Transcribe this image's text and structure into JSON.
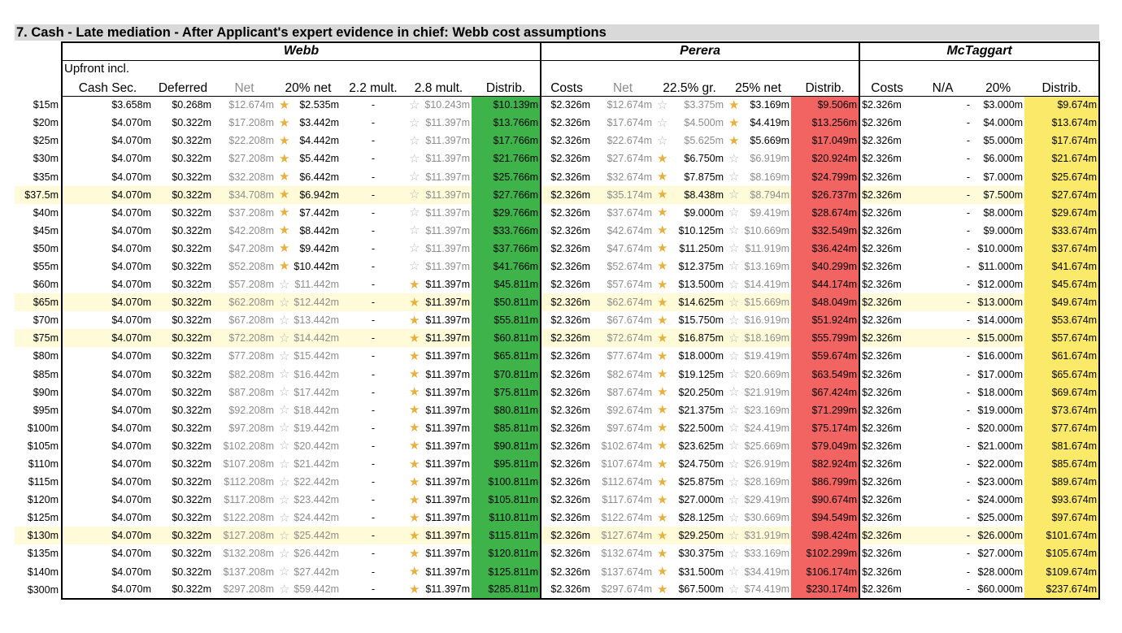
{
  "title": "7.  Cash - Late mediation - After Applicant's expert evidence in chief: Webb cost assumptions",
  "groups": {
    "webb": "Webb",
    "perera": "Perera",
    "mctaggart": "McTaggart"
  },
  "header_top": {
    "upfront": "Upfront incl."
  },
  "headers": {
    "webb": [
      "Cash Sec.",
      "Deferred",
      "Net",
      "20% net",
      "2.2 mult.",
      "2.8 mult.",
      "Distrib."
    ],
    "perera": [
      "Costs",
      "Net",
      "22.5% gr.",
      "25% net",
      "Distrib."
    ],
    "mctaggart": [
      "Costs",
      "N/A",
      "20%",
      "Distrib."
    ]
  },
  "colors": {
    "webb_distrib": "#3db34a",
    "perera_distrib": "#f26461",
    "mctaggart_distrib": "#fbe96a",
    "highlight_row": "#fffbd9",
    "star_filled": "#e8b13d",
    "star_empty": "#b9b9b9"
  },
  "rows": [
    {
      "label": "$15m",
      "hl": false,
      "w": [
        "$3.658m",
        "$0.268m",
        "$12.674m",
        "$2.535m",
        "-",
        "$10.243m",
        "$10.139m"
      ],
      "ws": [
        "f",
        "e"
      ],
      "p": [
        "$2.326m",
        "$12.674m",
        "$3.375m",
        "$3.169m",
        "$9.506m"
      ],
      "ps": [
        "e",
        "f"
      ],
      "m": [
        "$2.326m",
        "-",
        "$3.000m",
        "$9.674m"
      ]
    },
    {
      "label": "$20m",
      "hl": false,
      "w": [
        "$4.070m",
        "$0.322m",
        "$17.208m",
        "$3.442m",
        "-",
        "$11.397m",
        "$13.766m"
      ],
      "ws": [
        "f",
        "e"
      ],
      "p": [
        "$2.326m",
        "$17.674m",
        "$4.500m",
        "$4.419m",
        "$13.256m"
      ],
      "ps": [
        "e",
        "f"
      ],
      "m": [
        "$2.326m",
        "-",
        "$4.000m",
        "$13.674m"
      ]
    },
    {
      "label": "$25m",
      "hl": false,
      "w": [
        "$4.070m",
        "$0.322m",
        "$22.208m",
        "$4.442m",
        "-",
        "$11.397m",
        "$17.766m"
      ],
      "ws": [
        "f",
        "e"
      ],
      "p": [
        "$2.326m",
        "$22.674m",
        "$5.625m",
        "$5.669m",
        "$17.049m"
      ],
      "ps": [
        "e",
        "f"
      ],
      "m": [
        "$2.326m",
        "-",
        "$5.000m",
        "$17.674m"
      ]
    },
    {
      "label": "$30m",
      "hl": false,
      "w": [
        "$4.070m",
        "$0.322m",
        "$27.208m",
        "$5.442m",
        "-",
        "$11.397m",
        "$21.766m"
      ],
      "ws": [
        "f",
        "e"
      ],
      "p": [
        "$2.326m",
        "$27.674m",
        "$6.750m",
        "$6.919m",
        "$20.924m"
      ],
      "ps": [
        "f",
        "e"
      ],
      "m": [
        "$2.326m",
        "-",
        "$6.000m",
        "$21.674m"
      ]
    },
    {
      "label": "$35m",
      "hl": false,
      "w": [
        "$4.070m",
        "$0.322m",
        "$32.208m",
        "$6.442m",
        "-",
        "$11.397m",
        "$25.766m"
      ],
      "ws": [
        "f",
        "e"
      ],
      "p": [
        "$2.326m",
        "$32.674m",
        "$7.875m",
        "$8.169m",
        "$24.799m"
      ],
      "ps": [
        "f",
        "e"
      ],
      "m": [
        "$2.326m",
        "-",
        "$7.000m",
        "$25.674m"
      ]
    },
    {
      "label": "$37.5m",
      "hl": true,
      "w": [
        "$4.070m",
        "$0.322m",
        "$34.708m",
        "$6.942m",
        "-",
        "$11.397m",
        "$27.766m"
      ],
      "ws": [
        "f",
        "e"
      ],
      "p": [
        "$2.326m",
        "$35.174m",
        "$8.438m",
        "$8.794m",
        "$26.737m"
      ],
      "ps": [
        "f",
        "e"
      ],
      "m": [
        "$2.326m",
        "-",
        "$7.500m",
        "$27.674m"
      ]
    },
    {
      "label": "$40m",
      "hl": false,
      "w": [
        "$4.070m",
        "$0.322m",
        "$37.208m",
        "$7.442m",
        "-",
        "$11.397m",
        "$29.766m"
      ],
      "ws": [
        "f",
        "e"
      ],
      "p": [
        "$2.326m",
        "$37.674m",
        "$9.000m",
        "$9.419m",
        "$28.674m"
      ],
      "ps": [
        "f",
        "e"
      ],
      "m": [
        "$2.326m",
        "-",
        "$8.000m",
        "$29.674m"
      ]
    },
    {
      "label": "$45m",
      "hl": false,
      "w": [
        "$4.070m",
        "$0.322m",
        "$42.208m",
        "$8.442m",
        "-",
        "$11.397m",
        "$33.766m"
      ],
      "ws": [
        "f",
        "e"
      ],
      "p": [
        "$2.326m",
        "$42.674m",
        "$10.125m",
        "$10.669m",
        "$32.549m"
      ],
      "ps": [
        "f",
        "e"
      ],
      "m": [
        "$2.326m",
        "-",
        "$9.000m",
        "$33.674m"
      ]
    },
    {
      "label": "$50m",
      "hl": false,
      "w": [
        "$4.070m",
        "$0.322m",
        "$47.208m",
        "$9.442m",
        "-",
        "$11.397m",
        "$37.766m"
      ],
      "ws": [
        "f",
        "e"
      ],
      "p": [
        "$2.326m",
        "$47.674m",
        "$11.250m",
        "$11.919m",
        "$36.424m"
      ],
      "ps": [
        "f",
        "e"
      ],
      "m": [
        "$2.326m",
        "-",
        "$10.000m",
        "$37.674m"
      ]
    },
    {
      "label": "$55m",
      "hl": false,
      "w": [
        "$4.070m",
        "$0.322m",
        "$52.208m",
        "$10.442m",
        "-",
        "$11.397m",
        "$41.766m"
      ],
      "ws": [
        "f",
        "e"
      ],
      "p": [
        "$2.326m",
        "$52.674m",
        "$12.375m",
        "$13.169m",
        "$40.299m"
      ],
      "ps": [
        "f",
        "e"
      ],
      "m": [
        "$2.326m",
        "-",
        "$11.000m",
        "$41.674m"
      ]
    },
    {
      "label": "$60m",
      "hl": false,
      "w": [
        "$4.070m",
        "$0.322m",
        "$57.208m",
        "$11.442m",
        "-",
        "$11.397m",
        "$45.811m"
      ],
      "ws": [
        "e",
        "f"
      ],
      "p": [
        "$2.326m",
        "$57.674m",
        "$13.500m",
        "$14.419m",
        "$44.174m"
      ],
      "ps": [
        "f",
        "e"
      ],
      "m": [
        "$2.326m",
        "-",
        "$12.000m",
        "$45.674m"
      ]
    },
    {
      "label": "$65m",
      "hl": true,
      "w": [
        "$4.070m",
        "$0.322m",
        "$62.208m",
        "$12.442m",
        "-",
        "$11.397m",
        "$50.811m"
      ],
      "ws": [
        "e",
        "f"
      ],
      "p": [
        "$2.326m",
        "$62.674m",
        "$14.625m",
        "$15.669m",
        "$48.049m"
      ],
      "ps": [
        "f",
        "e"
      ],
      "m": [
        "$2.326m",
        "-",
        "$13.000m",
        "$49.674m"
      ]
    },
    {
      "label": "$70m",
      "hl": false,
      "w": [
        "$4.070m",
        "$0.322m",
        "$67.208m",
        "$13.442m",
        "-",
        "$11.397m",
        "$55.811m"
      ],
      "ws": [
        "e",
        "f"
      ],
      "p": [
        "$2.326m",
        "$67.674m",
        "$15.750m",
        "$16.919m",
        "$51.924m"
      ],
      "ps": [
        "f",
        "e"
      ],
      "m": [
        "$2.326m",
        "-",
        "$14.000m",
        "$53.674m"
      ]
    },
    {
      "label": "$75m",
      "hl": true,
      "w": [
        "$4.070m",
        "$0.322m",
        "$72.208m",
        "$14.442m",
        "-",
        "$11.397m",
        "$60.811m"
      ],
      "ws": [
        "e",
        "f"
      ],
      "p": [
        "$2.326m",
        "$72.674m",
        "$16.875m",
        "$18.169m",
        "$55.799m"
      ],
      "ps": [
        "f",
        "e"
      ],
      "m": [
        "$2.326m",
        "-",
        "$15.000m",
        "$57.674m"
      ]
    },
    {
      "label": "$80m",
      "hl": false,
      "w": [
        "$4.070m",
        "$0.322m",
        "$77.208m",
        "$15.442m",
        "-",
        "$11.397m",
        "$65.811m"
      ],
      "ws": [
        "e",
        "f"
      ],
      "p": [
        "$2.326m",
        "$77.674m",
        "$18.000m",
        "$19.419m",
        "$59.674m"
      ],
      "ps": [
        "f",
        "e"
      ],
      "m": [
        "$2.326m",
        "-",
        "$16.000m",
        "$61.674m"
      ]
    },
    {
      "label": "$85m",
      "hl": false,
      "w": [
        "$4.070m",
        "$0.322m",
        "$82.208m",
        "$16.442m",
        "-",
        "$11.397m",
        "$70.811m"
      ],
      "ws": [
        "e",
        "f"
      ],
      "p": [
        "$2.326m",
        "$82.674m",
        "$19.125m",
        "$20.669m",
        "$63.549m"
      ],
      "ps": [
        "f",
        "e"
      ],
      "m": [
        "$2.326m",
        "-",
        "$17.000m",
        "$65.674m"
      ]
    },
    {
      "label": "$90m",
      "hl": false,
      "w": [
        "$4.070m",
        "$0.322m",
        "$87.208m",
        "$17.442m",
        "-",
        "$11.397m",
        "$75.811m"
      ],
      "ws": [
        "e",
        "f"
      ],
      "p": [
        "$2.326m",
        "$87.674m",
        "$20.250m",
        "$21.919m",
        "$67.424m"
      ],
      "ps": [
        "f",
        "e"
      ],
      "m": [
        "$2.326m",
        "-",
        "$18.000m",
        "$69.674m"
      ]
    },
    {
      "label": "$95m",
      "hl": false,
      "w": [
        "$4.070m",
        "$0.322m",
        "$92.208m",
        "$18.442m",
        "-",
        "$11.397m",
        "$80.811m"
      ],
      "ws": [
        "e",
        "f"
      ],
      "p": [
        "$2.326m",
        "$92.674m",
        "$21.375m",
        "$23.169m",
        "$71.299m"
      ],
      "ps": [
        "f",
        "e"
      ],
      "m": [
        "$2.326m",
        "-",
        "$19.000m",
        "$73.674m"
      ]
    },
    {
      "label": "$100m",
      "hl": false,
      "w": [
        "$4.070m",
        "$0.322m",
        "$97.208m",
        "$19.442m",
        "-",
        "$11.397m",
        "$85.811m"
      ],
      "ws": [
        "e",
        "f"
      ],
      "p": [
        "$2.326m",
        "$97.674m",
        "$22.500m",
        "$24.419m",
        "$75.174m"
      ],
      "ps": [
        "f",
        "e"
      ],
      "m": [
        "$2.326m",
        "-",
        "$20.000m",
        "$77.674m"
      ]
    },
    {
      "label": "$105m",
      "hl": false,
      "w": [
        "$4.070m",
        "$0.322m",
        "$102.208m",
        "$20.442m",
        "-",
        "$11.397m",
        "$90.811m"
      ],
      "ws": [
        "e",
        "f"
      ],
      "p": [
        "$2.326m",
        "$102.674m",
        "$23.625m",
        "$25.669m",
        "$79.049m"
      ],
      "ps": [
        "f",
        "e"
      ],
      "m": [
        "$2.326m",
        "-",
        "$21.000m",
        "$81.674m"
      ]
    },
    {
      "label": "$110m",
      "hl": false,
      "w": [
        "$4.070m",
        "$0.322m",
        "$107.208m",
        "$21.442m",
        "-",
        "$11.397m",
        "$95.811m"
      ],
      "ws": [
        "e",
        "f"
      ],
      "p": [
        "$2.326m",
        "$107.674m",
        "$24.750m",
        "$26.919m",
        "$82.924m"
      ],
      "ps": [
        "f",
        "e"
      ],
      "m": [
        "$2.326m",
        "-",
        "$22.000m",
        "$85.674m"
      ]
    },
    {
      "label": "$115m",
      "hl": false,
      "w": [
        "$4.070m",
        "$0.322m",
        "$112.208m",
        "$22.442m",
        "-",
        "$11.397m",
        "$100.811m"
      ],
      "ws": [
        "e",
        "f"
      ],
      "p": [
        "$2.326m",
        "$112.674m",
        "$25.875m",
        "$28.169m",
        "$86.799m"
      ],
      "ps": [
        "f",
        "e"
      ],
      "m": [
        "$2.326m",
        "-",
        "$23.000m",
        "$89.674m"
      ]
    },
    {
      "label": "$120m",
      "hl": false,
      "w": [
        "$4.070m",
        "$0.322m",
        "$117.208m",
        "$23.442m",
        "-",
        "$11.397m",
        "$105.811m"
      ],
      "ws": [
        "e",
        "f"
      ],
      "p": [
        "$2.326m",
        "$117.674m",
        "$27.000m",
        "$29.419m",
        "$90.674m"
      ],
      "ps": [
        "f",
        "e"
      ],
      "m": [
        "$2.326m",
        "-",
        "$24.000m",
        "$93.674m"
      ]
    },
    {
      "label": "$125m",
      "hl": false,
      "w": [
        "$4.070m",
        "$0.322m",
        "$122.208m",
        "$24.442m",
        "-",
        "$11.397m",
        "$110.811m"
      ],
      "ws": [
        "e",
        "f"
      ],
      "p": [
        "$2.326m",
        "$122.674m",
        "$28.125m",
        "$30.669m",
        "$94.549m"
      ],
      "ps": [
        "f",
        "e"
      ],
      "m": [
        "$2.326m",
        "-",
        "$25.000m",
        "$97.674m"
      ]
    },
    {
      "label": "$130m",
      "hl": true,
      "w": [
        "$4.070m",
        "$0.322m",
        "$127.208m",
        "$25.442m",
        "-",
        "$11.397m",
        "$115.811m"
      ],
      "ws": [
        "e",
        "f"
      ],
      "p": [
        "$2.326m",
        "$127.674m",
        "$29.250m",
        "$31.919m",
        "$98.424m"
      ],
      "ps": [
        "f",
        "e"
      ],
      "m": [
        "$2.326m",
        "-",
        "$26.000m",
        "$101.674m"
      ]
    },
    {
      "label": "$135m",
      "hl": false,
      "w": [
        "$4.070m",
        "$0.322m",
        "$132.208m",
        "$26.442m",
        "-",
        "$11.397m",
        "$120.811m"
      ],
      "ws": [
        "e",
        "f"
      ],
      "p": [
        "$2.326m",
        "$132.674m",
        "$30.375m",
        "$33.169m",
        "$102.299m"
      ],
      "ps": [
        "f",
        "e"
      ],
      "m": [
        "$2.326m",
        "-",
        "$27.000m",
        "$105.674m"
      ]
    },
    {
      "label": "$140m",
      "hl": false,
      "w": [
        "$4.070m",
        "$0.322m",
        "$137.208m",
        "$27.442m",
        "-",
        "$11.397m",
        "$125.811m"
      ],
      "ws": [
        "e",
        "f"
      ],
      "p": [
        "$2.326m",
        "$137.674m",
        "$31.500m",
        "$34.419m",
        "$106.174m"
      ],
      "ps": [
        "f",
        "e"
      ],
      "m": [
        "$2.326m",
        "-",
        "$28.000m",
        "$109.674m"
      ]
    },
    {
      "label": "$300m",
      "hl": false,
      "w": [
        "$4.070m",
        "$0.322m",
        "$297.208m",
        "$59.442m",
        "-",
        "$11.397m",
        "$285.811m"
      ],
      "ws": [
        "e",
        "f"
      ],
      "p": [
        "$2.326m",
        "$297.674m",
        "$67.500m",
        "$74.419m",
        "$230.174m"
      ],
      "ps": [
        "f",
        "e"
      ],
      "m": [
        "$2.326m",
        "-",
        "$60.000m",
        "$237.674m"
      ]
    }
  ]
}
